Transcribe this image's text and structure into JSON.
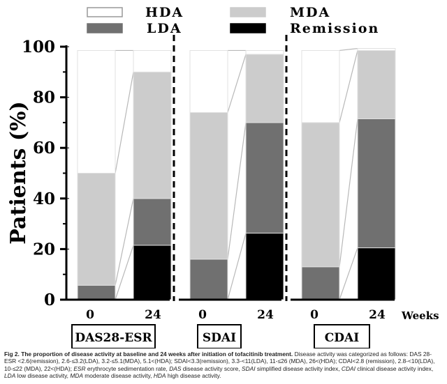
{
  "chart_data": {
    "type": "bar",
    "stacked": true,
    "ylabel": "Patients (%)",
    "xlabel": "Weeks",
    "ylim": [
      0,
      100
    ],
    "yticks": [
      "0",
      "20",
      "40",
      "60",
      "80",
      "100"
    ],
    "legend": [
      {
        "name": "HDA",
        "color": "#ffffff"
      },
      {
        "name": "MDA",
        "color": "#cccccc"
      },
      {
        "name": "LDA",
        "color": "#707070"
      },
      {
        "name": "Remission",
        "color": "#000000"
      }
    ],
    "groups": [
      {
        "name": "DAS28-ESR",
        "bars": [
          {
            "week": "0",
            "Remission": 0,
            "LDA": 5.7,
            "MDA": 44.3,
            "HDA": 48.5
          },
          {
            "week": "24",
            "Remission": 21.5,
            "LDA": 18.5,
            "MDA": 50.0,
            "HDA": 8.5
          }
        ]
      },
      {
        "name": "SDAI",
        "bars": [
          {
            "week": "0",
            "Remission": 0,
            "LDA": 16.0,
            "MDA": 58.0,
            "HDA": 24.5
          },
          {
            "week": "24",
            "Remission": 26.3,
            "LDA": 43.7,
            "MDA": 27.0,
            "HDA": 1.5
          }
        ]
      },
      {
        "name": "CDAI",
        "bars": [
          {
            "week": "0",
            "Remission": 0,
            "LDA": 13.0,
            "MDA": 57.0,
            "HDA": 28.5
          },
          {
            "week": "24",
            "Remission": 20.5,
            "LDA": 51.0,
            "MDA": 27.0,
            "HDA": 0.8
          }
        ]
      }
    ]
  },
  "caption": {
    "title": "Fig 2. The proportion of disease activity at baseline and 24 weeks after initiation of tofacitinib treatment.",
    "body1": " Disease activity was categorized as follows: DAS 28-ESR <2.6(remission), 2.6-≤3.2(LDA), 3.2-≤5.1(MDA), 5.1<(HDA); SDAI<3.3(remission), 3.3-<11(LDA), 11-≤26 (MDA), 26<(HDA); CDAI<2.8 (remission), 2.8-<10(LDA), 10-≤22 (MDA), 22<(HDA); ",
    "t_esr": "ESR",
    "d_esr": " erythrocyte sedimentation rate, ",
    "t_das": "DAS",
    "d_das": " disease activity score, ",
    "t_sdai": "SDAI",
    "d_sdai": " simplified disease activity index, ",
    "t_cdai": "CDAI",
    "d_cdai": " clinical disease activity index, ",
    "t_lda": "LDA",
    "d_lda": " low disease activity, ",
    "t_mda": "MDA",
    "d_mda": " moderate disease activity, ",
    "t_hda": "HDA",
    "d_hda": " high disease activity."
  }
}
